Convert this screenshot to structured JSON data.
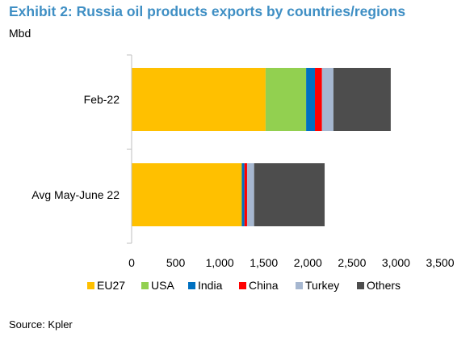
{
  "title": "Exhibit 2: Russia oil products exports by countries/regions",
  "unit": "Mbd",
  "source": "Source: Kpler",
  "chart_data": {
    "type": "bar",
    "orientation": "horizontal",
    "stacked": true,
    "categories": [
      "Feb-22",
      "Avg May-June 22"
    ],
    "series": [
      {
        "name": "EU27",
        "color": "#ffc000",
        "values": [
          1520,
          1250
        ]
      },
      {
        "name": "USA",
        "color": "#92d050",
        "values": [
          460,
          0
        ]
      },
      {
        "name": "India",
        "color": "#0070c0",
        "values": [
          100,
          30
        ]
      },
      {
        "name": "China",
        "color": "#ff0000",
        "values": [
          80,
          30
        ]
      },
      {
        "name": "Turkey",
        "color": "#a6b7d0",
        "values": [
          130,
          80
        ]
      },
      {
        "name": "Others",
        "color": "#4d4d4d",
        "values": [
          650,
          800
        ]
      }
    ],
    "xlim": [
      0,
      3500
    ],
    "xticks": [
      0,
      500,
      1000,
      1500,
      2000,
      2500,
      3000,
      3500
    ],
    "xtick_labels": [
      "0",
      "500",
      "1,000",
      "1,500",
      "2,000",
      "2,500",
      "3,000",
      "3,500"
    ],
    "legend_position": "bottom",
    "grid": false
  }
}
